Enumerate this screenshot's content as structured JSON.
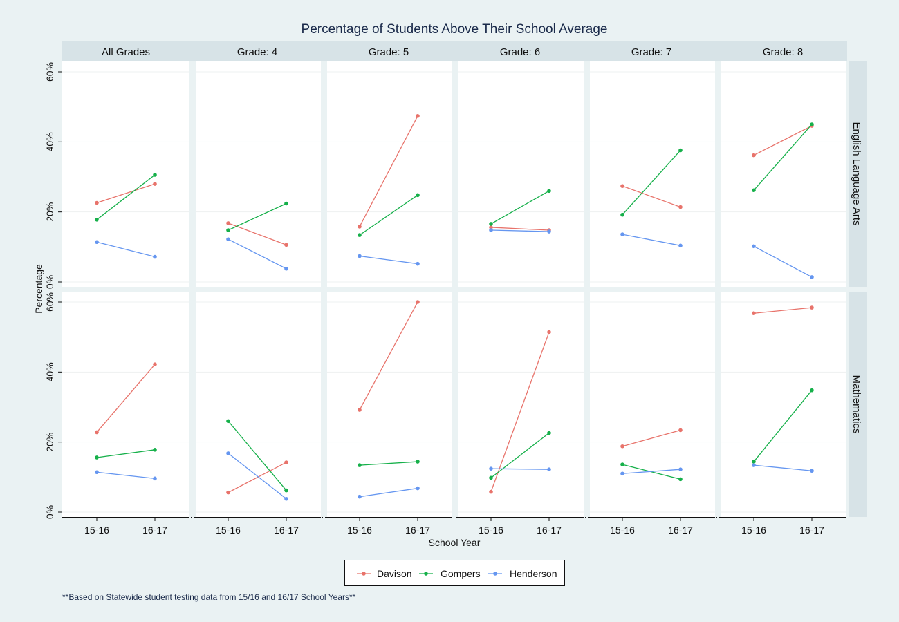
{
  "chart_data": {
    "type": "line",
    "title": "Percentage of Students Above Their School Average",
    "xlabel": "School Year",
    "ylabel": "Percentage",
    "x": [
      "15-16",
      "16-17"
    ],
    "y_ticks": [
      "0%",
      "20%",
      "40%",
      "60%"
    ],
    "ylim": [
      0,
      62
    ],
    "columns": [
      "All Grades",
      "Grade: 4",
      "Grade: 5",
      "Grade: 6",
      "Grade: 7",
      "Grade: 8"
    ],
    "rows": [
      "English Language Arts",
      "Mathematics"
    ],
    "series_names": [
      "Davison",
      "Gompers",
      "Henderson"
    ],
    "series_colors": {
      "Davison": "#e8736b",
      "Gompers": "#16b04a",
      "Henderson": "#6596f0"
    },
    "legend_position": "bottom",
    "grid": true,
    "footnote": "**Based on Statewide student testing data from 15/16 and 16/17 School Years**",
    "panels": {
      "English Language Arts": {
        "All Grades": {
          "Davison": [
            22.6,
            28.0
          ],
          "Gompers": [
            17.8,
            30.6
          ],
          "Henderson": [
            11.4,
            7.2
          ]
        },
        "Grade: 4": {
          "Davison": [
            16.8,
            10.6
          ],
          "Gompers": [
            14.8,
            22.4
          ],
          "Henderson": [
            12.2,
            3.8
          ]
        },
        "Grade: 5": {
          "Davison": [
            15.8,
            47.4
          ],
          "Gompers": [
            13.4,
            24.8
          ],
          "Henderson": [
            7.4,
            5.2
          ]
        },
        "Grade: 6": {
          "Davison": [
            15.6,
            14.8
          ],
          "Gompers": [
            16.6,
            26.0
          ],
          "Henderson": [
            14.8,
            14.4
          ]
        },
        "Grade: 7": {
          "Davison": [
            27.4,
            21.4
          ],
          "Gompers": [
            19.2,
            37.6
          ],
          "Henderson": [
            13.6,
            10.4
          ]
        },
        "Grade: 8": {
          "Davison": [
            36.2,
            44.6
          ],
          "Gompers": [
            26.2,
            45.0
          ],
          "Henderson": [
            10.2,
            1.4
          ]
        }
      },
      "Mathematics": {
        "All Grades": {
          "Davison": [
            22.8,
            42.2
          ],
          "Gompers": [
            15.6,
            17.8
          ],
          "Henderson": [
            11.4,
            9.6
          ]
        },
        "Grade: 4": {
          "Davison": [
            5.6,
            14.2
          ],
          "Gompers": [
            26.0,
            6.2
          ],
          "Henderson": [
            16.8,
            3.8
          ]
        },
        "Grade: 5": {
          "Davison": [
            29.2,
            60.0
          ],
          "Gompers": [
            13.4,
            14.4
          ],
          "Henderson": [
            4.4,
            6.8
          ]
        },
        "Grade: 6": {
          "Davison": [
            5.8,
            51.4
          ],
          "Gompers": [
            9.8,
            22.6
          ],
          "Henderson": [
            12.4,
            12.2
          ]
        },
        "Grade: 7": {
          "Davison": [
            18.8,
            23.4
          ],
          "Gompers": [
            13.6,
            9.4
          ],
          "Henderson": [
            11.0,
            12.2
          ]
        },
        "Grade: 8": {
          "Davison": [
            56.8,
            58.4
          ],
          "Gompers": [
            14.4,
            34.8
          ],
          "Henderson": [
            13.4,
            11.8
          ]
        }
      }
    }
  }
}
